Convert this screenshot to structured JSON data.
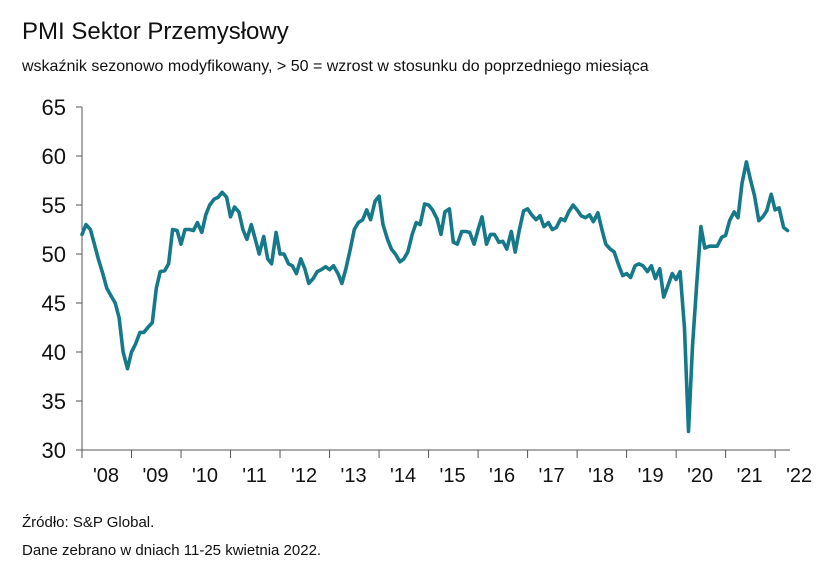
{
  "chart_data": {
    "type": "line",
    "title": "PMI Sektor Przemysłowy",
    "subtitle": "wskaźnik sezonowo modyfikowany, > 50 = wzrost w stosunku do poprzedniego miesiąca",
    "ylim": [
      30,
      65
    ],
    "yticks": [
      30,
      35,
      40,
      45,
      50,
      55,
      60,
      65
    ],
    "xlim": [
      2008.0,
      2022.3
    ],
    "xtick_labels": [
      "'08",
      "'09",
      "'10",
      "'11",
      "'12",
      "'13",
      "'14",
      "'15",
      "'16",
      "'17",
      "'18",
      "'19",
      "'20",
      "'21",
      "'22"
    ],
    "grid": false,
    "line_color": "#16798a",
    "series": [
      {
        "x": [
          2008.0,
          2008.08,
          2008.17,
          2008.25,
          2008.33,
          2008.42,
          2008.5,
          2008.58,
          2008.67,
          2008.75,
          2008.83,
          2008.92,
          2009.0,
          2009.08,
          2009.17,
          2009.25,
          2009.33,
          2009.42,
          2009.5,
          2009.58,
          2009.67,
          2009.75,
          2009.83,
          2009.92,
          2010.0,
          2010.08,
          2010.17,
          2010.25,
          2010.33,
          2010.42,
          2010.5,
          2010.58,
          2010.67,
          2010.75,
          2010.83,
          2010.92,
          2011.0,
          2011.08,
          2011.17,
          2011.25,
          2011.33,
          2011.42,
          2011.5,
          2011.58,
          2011.67,
          2011.75,
          2011.83,
          2011.92,
          2012.0,
          2012.08,
          2012.17,
          2012.25,
          2012.33,
          2012.42,
          2012.5,
          2012.58,
          2012.67,
          2012.75,
          2012.83,
          2012.92,
          2013.0,
          2013.08,
          2013.17,
          2013.25,
          2013.33,
          2013.42,
          2013.5,
          2013.58,
          2013.67,
          2013.75,
          2013.83,
          2013.92,
          2014.0,
          2014.08,
          2014.17,
          2014.25,
          2014.33,
          2014.42,
          2014.5,
          2014.58,
          2014.67,
          2014.75,
          2014.83,
          2014.92,
          2015.0,
          2015.08,
          2015.17,
          2015.25,
          2015.33,
          2015.42,
          2015.5,
          2015.58,
          2015.67,
          2015.75,
          2015.83,
          2015.92,
          2016.0,
          2016.08,
          2016.17,
          2016.25,
          2016.33,
          2016.42,
          2016.5,
          2016.58,
          2016.67,
          2016.75,
          2016.83,
          2016.92,
          2017.0,
          2017.08,
          2017.17,
          2017.25,
          2017.33,
          2017.42,
          2017.5,
          2017.58,
          2017.67,
          2017.75,
          2017.83,
          2017.92,
          2018.0,
          2018.08,
          2018.17,
          2018.25,
          2018.33,
          2018.42,
          2018.5,
          2018.58,
          2018.67,
          2018.75,
          2018.83,
          2018.92,
          2019.0,
          2019.08,
          2019.17,
          2019.25,
          2019.33,
          2019.42,
          2019.5,
          2019.58,
          2019.67,
          2019.75,
          2019.83,
          2019.92,
          2020.0,
          2020.08,
          2020.17,
          2020.25,
          2020.33,
          2020.42,
          2020.5,
          2020.58,
          2020.67,
          2020.75,
          2020.83,
          2020.92,
          2021.0,
          2021.08,
          2021.17,
          2021.25,
          2021.33,
          2021.42,
          2021.5,
          2021.58,
          2021.67,
          2021.75,
          2021.83,
          2021.92,
          2022.0,
          2022.08,
          2022.17,
          2022.25
        ],
        "y": [
          52.0,
          53.0,
          52.5,
          51.0,
          49.5,
          48.0,
          46.5,
          45.8,
          45.0,
          43.5,
          40.0,
          38.3,
          40.0,
          40.8,
          42.0,
          42.0,
          42.5,
          43.0,
          46.5,
          48.2,
          48.3,
          49.0,
          52.5,
          52.4,
          51.0,
          52.5,
          52.5,
          52.4,
          53.2,
          52.2,
          54.0,
          55.0,
          55.6,
          55.8,
          56.3,
          55.8,
          53.8,
          54.8,
          54.3,
          52.5,
          51.5,
          53.0,
          51.5,
          50.0,
          51.8,
          49.5,
          49.0,
          52.2,
          50.0,
          50.0,
          49.0,
          48.8,
          48.0,
          49.5,
          48.5,
          47.0,
          47.5,
          48.2,
          48.4,
          48.7,
          48.4,
          48.8,
          48.0,
          47.0,
          48.5,
          50.5,
          52.5,
          53.2,
          53.5,
          54.5,
          53.5,
          55.4,
          55.9,
          53.0,
          51.5,
          50.5,
          50.0,
          49.2,
          49.5,
          50.2,
          52.0,
          53.2,
          53.0,
          55.1,
          55.0,
          54.5,
          53.6,
          52.0,
          54.3,
          54.6,
          51.2,
          51.0,
          52.3,
          52.3,
          52.2,
          51.0,
          52.5,
          53.8,
          51.0,
          52.0,
          52.0,
          51.2,
          51.3,
          50.5,
          52.3,
          50.2,
          52.4,
          54.4,
          54.6,
          54.0,
          53.5,
          53.9,
          52.8,
          53.2,
          52.5,
          52.7,
          53.6,
          53.4,
          54.3,
          55.0,
          54.5,
          53.9,
          53.7,
          54.0,
          53.3,
          54.2,
          52.5,
          51.0,
          50.5,
          50.2,
          49.0,
          47.8,
          48.0,
          47.6,
          48.8,
          49.0,
          48.8,
          48.2,
          48.8,
          47.5,
          48.5,
          45.6,
          46.7,
          48.0,
          47.4,
          48.2,
          42.4,
          31.9,
          40.6,
          47.2,
          52.8,
          50.6,
          50.8,
          50.8,
          50.8,
          51.7,
          51.9,
          53.4,
          54.3,
          53.7,
          57.2,
          59.4,
          57.6,
          56.0,
          53.4,
          53.8,
          54.4,
          56.1,
          54.5,
          54.7,
          52.7,
          52.4
        ]
      }
    ]
  },
  "footer": {
    "source": "Źródło: S&P Global.",
    "note": "Dane zebrano w dniach 11-25 kwietnia 2022."
  }
}
